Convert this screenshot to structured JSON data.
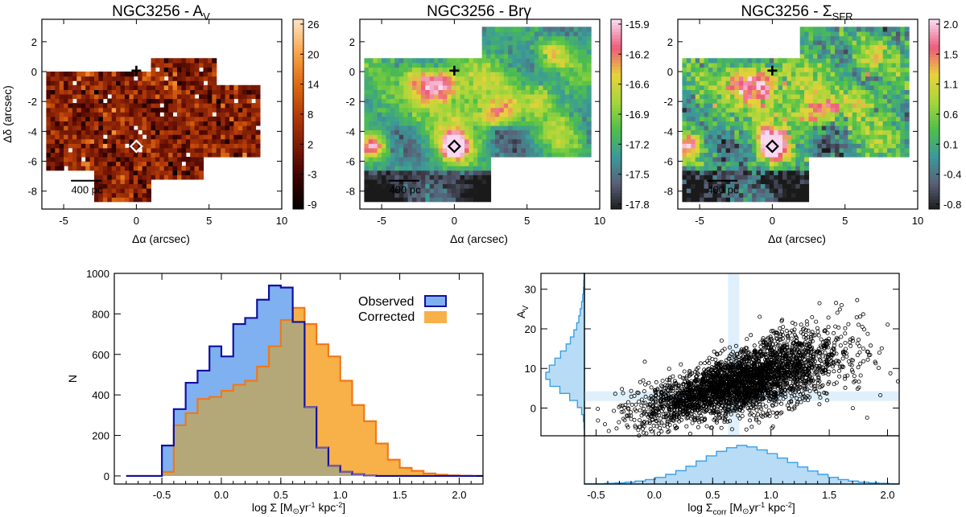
{
  "chart_data": [
    {
      "type": "heatmap",
      "id": "map-av",
      "title": "NGC3256 - A",
      "title_sub": "V",
      "xlabel": "Δα (arcsec)",
      "ylabel": "Δδ (arcsec)",
      "xlim": [
        -6.5,
        10
      ],
      "ylim": [
        -9.2,
        3.5
      ],
      "xticks": [
        -5,
        0,
        5,
        10
      ],
      "yticks": [
        -8,
        -6,
        -4,
        -2,
        0,
        2
      ],
      "colorbar_ticks": [
        "26",
        "20",
        "14",
        "8",
        "2",
        "-3",
        "-9"
      ],
      "colormap": [
        "#000000",
        "#3a0000",
        "#7a1a05",
        "#b23a08",
        "#dd6a12",
        "#f9a44a",
        "#fde2c0"
      ],
      "scalebar_label": "400 pc",
      "nucleus_marker": "+",
      "source_marker_color": "#ffffff"
    },
    {
      "type": "heatmap",
      "id": "map-brg",
      "title": "NGC3256 - Brγ",
      "title_sub": "",
      "xlabel": "Δα (arcsec)",
      "ylabel": "",
      "xlim": [
        -6.5,
        10
      ],
      "ylim": [
        -9.2,
        3.5
      ],
      "xticks": [
        -5,
        0,
        5,
        10
      ],
      "yticks": [
        -8,
        -6,
        -4,
        -2,
        0,
        2
      ],
      "colorbar_ticks": [
        "-15.9",
        "-16.2",
        "-16.6",
        "-16.9",
        "-17.2",
        "-17.5",
        "-17.8"
      ],
      "colormap": [
        "#1a1a1a",
        "#5a6078",
        "#3a9a9a",
        "#4fbf4a",
        "#a6d63a",
        "#e8d23a",
        "#ee5a7a",
        "#f8d8f0"
      ],
      "scalebar_label": "400 pc",
      "nucleus_marker": "+",
      "source_marker_color": "#000000"
    },
    {
      "type": "heatmap",
      "id": "map-sfr",
      "title": "NGC3256 - Σ",
      "title_sub": "SFR",
      "xlabel": "Δα (arcsec)",
      "ylabel": "",
      "xlim": [
        -6.5,
        10
      ],
      "ylim": [
        -9.2,
        3.5
      ],
      "xticks": [
        -5,
        0,
        5,
        10
      ],
      "yticks": [
        -8,
        -6,
        -4,
        -2,
        0,
        2
      ],
      "colorbar_ticks": [
        "2.0",
        "1.5",
        "1.1",
        "0.6",
        "0.1",
        "-0.4",
        "-0.8"
      ],
      "colormap": [
        "#1a1a1a",
        "#5a6078",
        "#3a9a9a",
        "#4fbf4a",
        "#a6d63a",
        "#e8d23a",
        "#ee5a7a",
        "#f8d8f0"
      ],
      "scalebar_label": "400 pc",
      "nucleus_marker": "+",
      "source_marker_color": "#000000"
    },
    {
      "type": "bar",
      "subtype": "step-histogram",
      "id": "histogram",
      "xlabel": "log Σ [M",
      "xlabel_suffix": "yr",
      "xlabel_end": " kpc",
      "ylabel": "N",
      "xlim": [
        -0.9,
        2.2
      ],
      "ylim": [
        -40,
        1000
      ],
      "xticks": [
        "-0.5",
        "0.0",
        "0.5",
        "1.0",
        "1.5",
        "2.0"
      ],
      "yticks": [
        "0",
        "200",
        "400",
        "600",
        "800",
        "1000"
      ],
      "bin_edges": [
        -0.8,
        -0.7,
        -0.6,
        -0.5,
        -0.4,
        -0.3,
        -0.2,
        -0.1,
        0.0,
        0.1,
        0.2,
        0.3,
        0.4,
        0.5,
        0.6,
        0.7,
        0.8,
        0.9,
        1.0,
        1.1,
        1.2,
        1.3,
        1.4,
        1.5,
        1.6,
        1.7,
        1.8,
        1.9,
        2.0,
        2.1,
        2.2
      ],
      "series": [
        {
          "name": "Observed",
          "fill": "#7fb0f0",
          "edge": "#1010a0",
          "values": [
            0,
            0,
            0,
            150,
            330,
            460,
            520,
            640,
            590,
            750,
            780,
            870,
            940,
            930,
            760,
            340,
            140,
            50,
            20,
            8,
            2,
            0,
            0,
            0,
            0,
            0,
            0,
            0,
            0,
            0
          ]
        },
        {
          "name": "Corrected",
          "fill": "#f8b048",
          "edge": "#f07818",
          "values": [
            0,
            0,
            0,
            20,
            250,
            310,
            380,
            390,
            420,
            450,
            470,
            540,
            640,
            770,
            830,
            750,
            650,
            590,
            470,
            350,
            270,
            160,
            80,
            40,
            25,
            12,
            6,
            3,
            1,
            0
          ]
        }
      ]
    },
    {
      "type": "scatter",
      "id": "scatter",
      "xlabel": "log Σ",
      "xlabel_sub": "corr",
      "xlabel_rest": " [M",
      "xlabel_suffix": "yr",
      "xlabel_end": " kpc",
      "ylabel": "A",
      "ylabel_sub": "V",
      "xlim": [
        -0.6,
        2.1
      ],
      "ylim": [
        -7,
        34
      ],
      "xticks": [
        "-0.5",
        "0.0",
        "0.5",
        "1.0",
        "1.5",
        "2.0"
      ],
      "yticks": [
        "0",
        "10",
        "20",
        "30"
      ],
      "n_points": 3200,
      "trend": {
        "slope": 8.5,
        "intercept": 0.2,
        "scatter_sigma": 4.8,
        "x_center": 0.75,
        "x_sigma": 0.42
      },
      "highlight_band": {
        "x_value": 0.68,
        "y_value": 3.0,
        "color": "#dff0fc"
      },
      "hist_color": "#b8dcf6",
      "hist_edge": "#3aa0e8",
      "top_hist_values": [
        1,
        1,
        2,
        3,
        5,
        8,
        12,
        18,
        26,
        36,
        48,
        62,
        76,
        88,
        98,
        104,
        100,
        92,
        82,
        70,
        58,
        46,
        35,
        26,
        18,
        12,
        8,
        5,
        3,
        2,
        1
      ],
      "side_hist_values": [
        0,
        1,
        3,
        8,
        20,
        42,
        70,
        98,
        110,
        100,
        84,
        68,
        52,
        40,
        30,
        22,
        16,
        12,
        8,
        5,
        3,
        2,
        1
      ]
    }
  ],
  "legend": {
    "observed": "Observed",
    "corrected": "Corrected"
  },
  "symbols": {
    "sun": "⊙",
    "minus1": "-1",
    "minus2": "-2"
  }
}
